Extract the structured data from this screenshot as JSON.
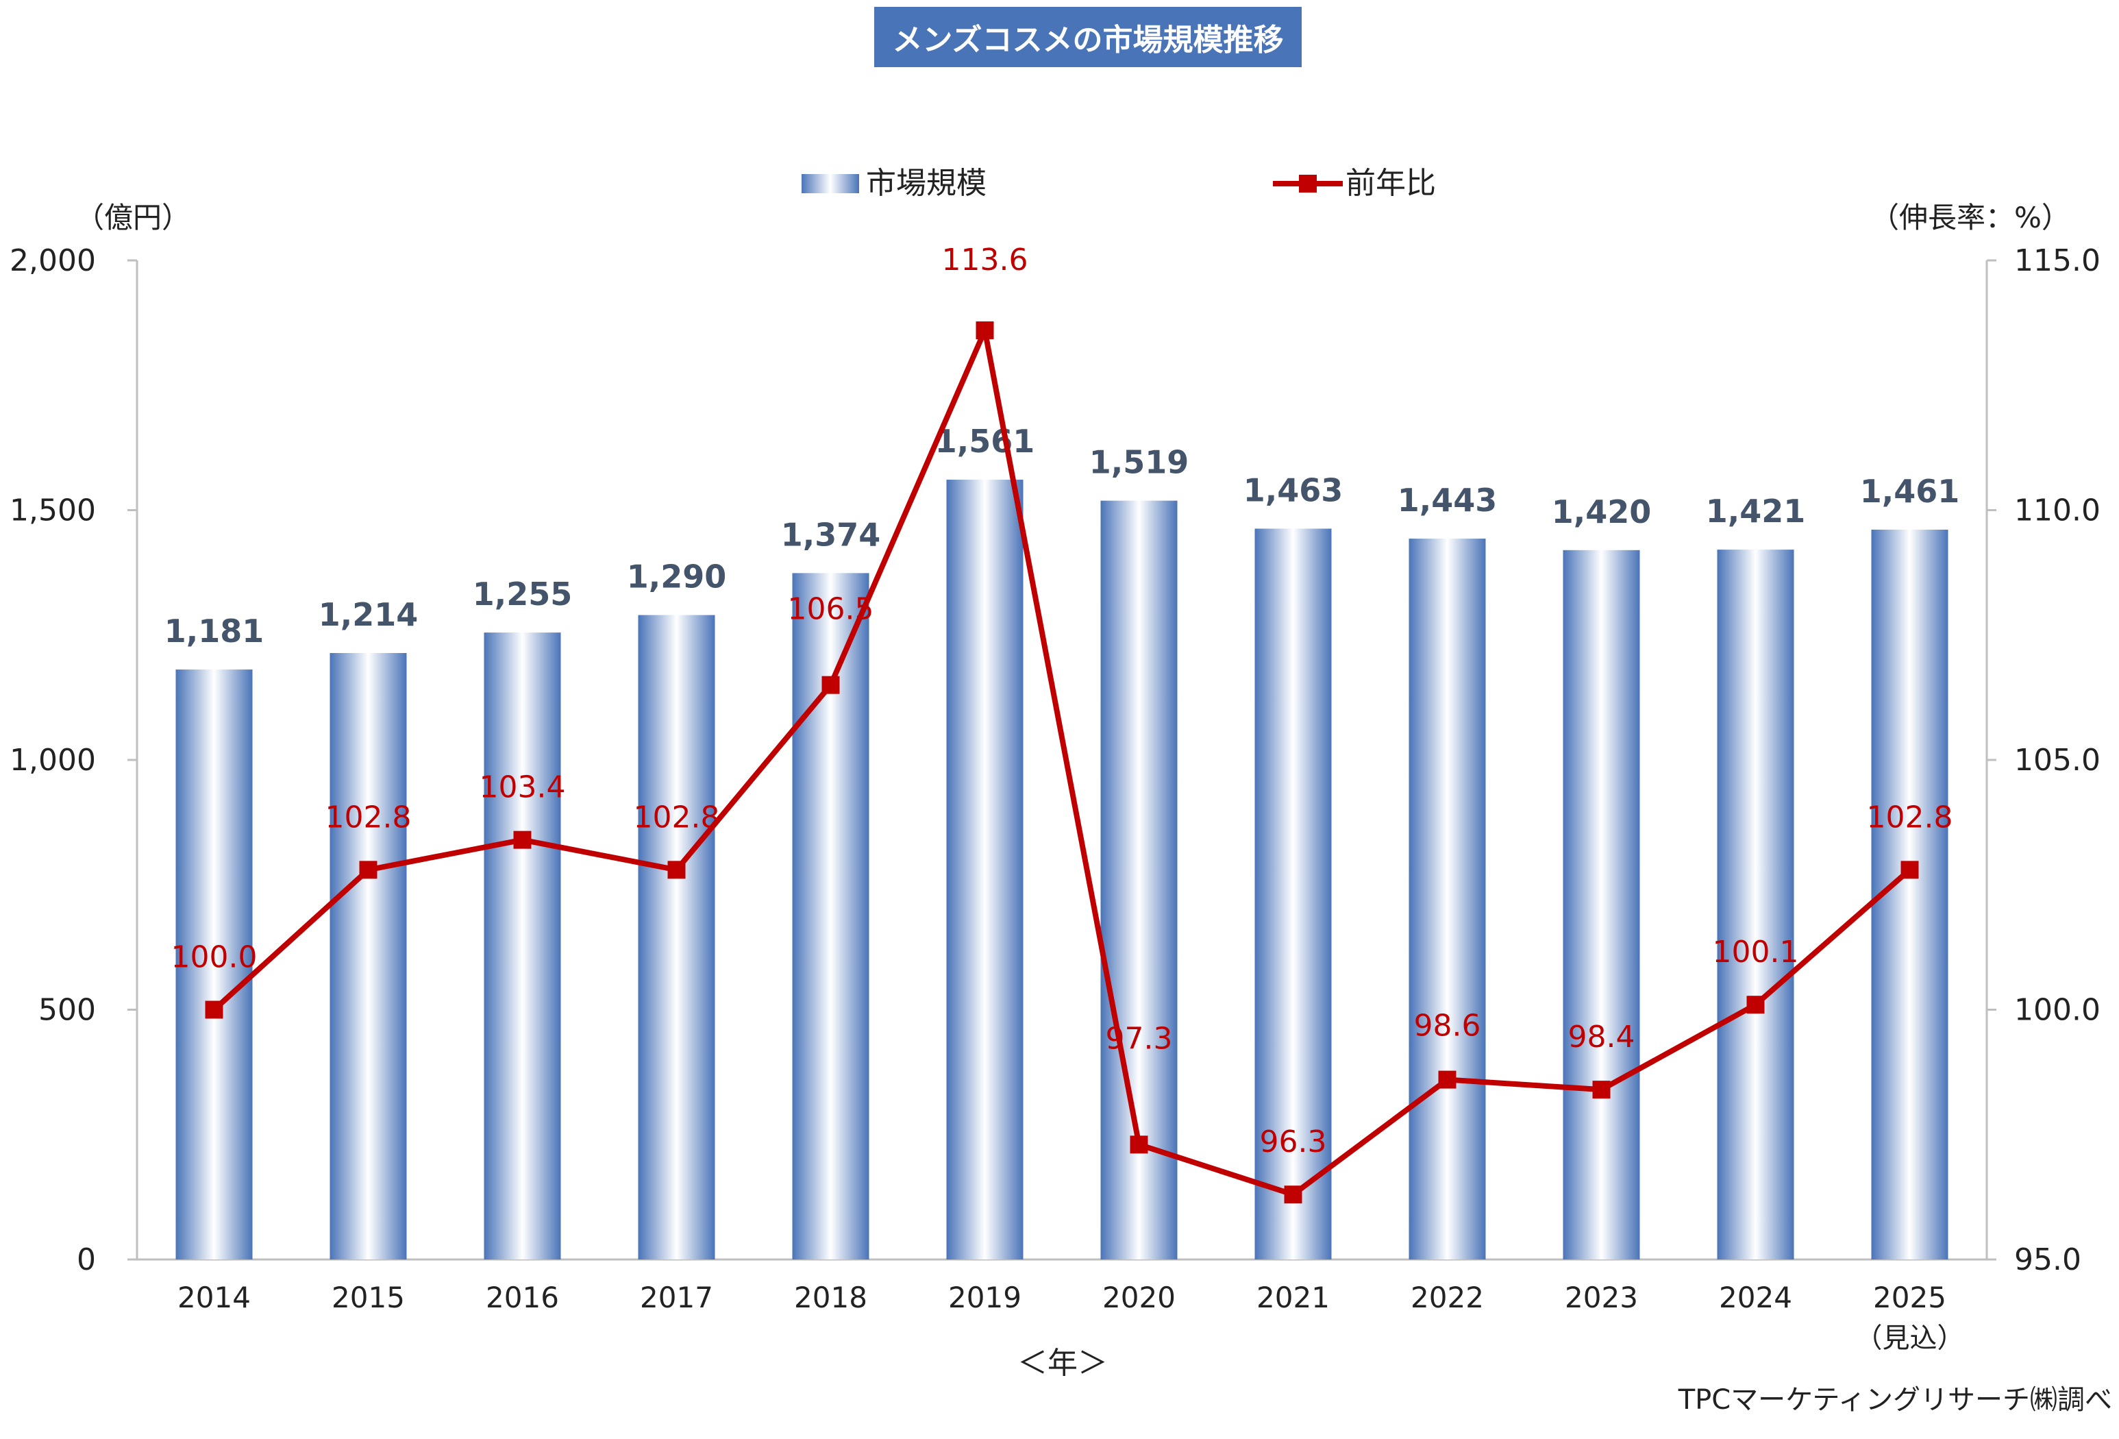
{
  "chart_data": {
    "type": "bar",
    "title": "メンズコスメの市場規模推移",
    "categories": [
      "2014",
      "2015",
      "2016",
      "2017",
      "2018",
      "2019",
      "2020",
      "2021",
      "2022",
      "2023",
      "2024",
      "2025"
    ],
    "category_sublabels": [
      "",
      "",
      "",
      "",
      "",
      "",
      "",
      "",
      "",
      "",
      "",
      "（見込）"
    ],
    "xlabel": "＜年＞",
    "ylabel_left": "（億円）",
    "ylabel_right": "（伸長率：%）",
    "y_left": {
      "min": 0,
      "max": 2000,
      "ticks": [
        0,
        500,
        1000,
        1500,
        2000
      ],
      "tick_labels": [
        "0",
        "500",
        "1,000",
        "1,500",
        "2,000"
      ]
    },
    "y_right": {
      "min": 95,
      "max": 115,
      "ticks": [
        95,
        100,
        105,
        110,
        115
      ],
      "tick_labels": [
        "95.0",
        "100.0",
        "105.0",
        "110.0",
        "115.0"
      ]
    },
    "grid": false,
    "legend_position": "top",
    "series": [
      {
        "name": "市場規模",
        "type": "bar",
        "axis": "left",
        "color": "#4a74b8",
        "values": [
          1181,
          1214,
          1255,
          1290,
          1374,
          1561,
          1519,
          1463,
          1443,
          1420,
          1421,
          1461
        ],
        "labels": [
          "1,181",
          "1,214",
          "1,255",
          "1,290",
          "1,374",
          "1,561",
          "1,519",
          "1,463",
          "1,443",
          "1,420",
          "1,421",
          "1,461"
        ]
      },
      {
        "name": "前年比",
        "type": "line",
        "axis": "right",
        "color": "#c00000",
        "values": [
          100.0,
          102.8,
          103.4,
          102.8,
          106.5,
          113.6,
          97.3,
          96.3,
          98.6,
          98.4,
          100.1,
          102.8
        ],
        "labels": [
          "100.0",
          "102.8",
          "103.4",
          "102.8",
          "106.5",
          "113.6",
          "97.3",
          "96.3",
          "98.6",
          "98.4",
          "100.1",
          "102.8"
        ]
      }
    ],
    "source": "TPCマーケティングリサーチ㈱調べ"
  }
}
